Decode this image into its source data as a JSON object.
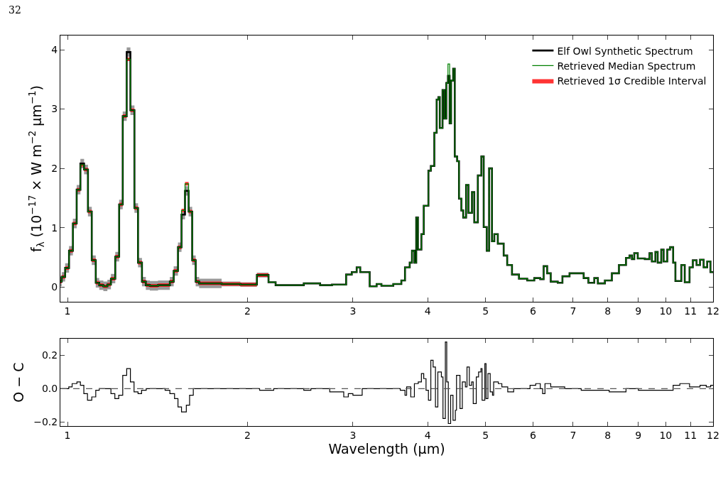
{
  "chart_data": [
    {
      "type": "step",
      "ylabel": "f$_{λ}$ (10$^{−17}$ × W m$^{−2}$ μm$^{−1}$)",
      "annotations": [
        "32"
      ],
      "log": "x",
      "legend": "top right",
      "tick_labels": "xy",
      "xlim": [
        0.973,
        12
      ],
      "xticks": [
        1,
        2,
        3,
        4,
        5,
        6,
        7,
        8,
        9,
        10,
        11,
        12
      ],
      "ylim": [
        -0.25,
        4.24
      ],
      "yticks": [
        0,
        1,
        2,
        3,
        4
      ],
      "x": [
        0.973,
        0.978,
        0.991,
        1.006,
        1.021,
        1.036,
        1.051,
        1.066,
        1.082,
        1.098,
        1.115,
        1.13,
        1.148,
        1.166,
        1.182,
        1.202,
        1.22,
        1.237,
        1.256,
        1.274,
        1.294,
        1.312,
        1.332,
        1.352,
        1.373,
        1.417,
        1.483,
        1.505,
        1.53,
        1.551,
        1.572,
        1.594,
        1.616,
        1.638,
        1.66,
        1.81,
        1.945,
        2.073,
        2.168,
        2.228,
        2.483,
        2.644,
        2.768,
        2.923,
        2.987,
        3.044,
        3.086,
        3.2,
        3.287,
        3.348,
        3.504,
        3.615,
        3.666,
        3.733,
        3.766,
        3.801,
        3.828,
        3.853,
        3.905,
        3.94,
        4.012,
        4.049,
        4.104,
        4.141,
        4.169,
        4.191,
        4.236,
        4.267,
        4.298,
        4.325,
        4.353,
        4.377,
        4.413,
        4.44,
        4.48,
        4.513,
        4.554,
        4.587,
        4.638,
        4.68,
        4.744,
        4.786,
        4.852,
        4.918,
        4.963,
        5.022,
        5.067,
        5.123,
        5.17,
        5.24,
        5.36,
        5.433,
        5.534,
        5.684,
        5.869,
        6.03,
        6.169,
        6.251,
        6.337,
        6.424,
        6.6,
        6.72,
        6.906,
        7.096,
        7.292,
        7.426,
        7.596,
        7.7,
        7.912,
        8.128,
        8.353,
        8.583,
        8.7,
        8.779,
        8.859,
        8.98,
        9.226,
        9.395,
        9.48,
        9.61,
        9.696,
        9.83,
        9.92,
        10.06,
        10.17,
        10.29,
        10.38,
        10.62,
        10.76,
        10.96,
        11.1,
        11.26,
        11.41,
        11.57,
        11.73,
        11.88,
        12.0
      ],
      "series": [
        {
          "type": "area",
          "color": "#999999",
          "values": [
            null,
            null,
            null,
            null,
            null,
            null,
            null,
            null,
            null,
            null,
            null,
            null,
            null,
            null,
            null,
            null,
            null,
            null,
            null,
            null,
            null,
            null,
            null,
            null,
            null,
            null,
            null,
            null,
            null,
            null,
            null,
            null,
            null,
            null,
            null,
            null,
            null,
            null,
            null
          ],
          "x": [
            0.973,
            0.978,
            0.991,
            1.006,
            1.021,
            1.036,
            1.051,
            1.066,
            1.082,
            1.098,
            1.115,
            1.13,
            1.148,
            1.166,
            1.182,
            1.202,
            1.22,
            1.237,
            1.256,
            1.274,
            1.294,
            1.312,
            1.332,
            1.352,
            1.373,
            1.417,
            1.483,
            1.505,
            1.53,
            1.551,
            1.572,
            1.594,
            1.616,
            1.638,
            1.66,
            1.81,
            1.945,
            2.073,
            2.168
          ],
          "lower": [
            0.01,
            0.09,
            0.24,
            0.53,
            0.99,
            1.56,
            2.0,
            1.9,
            1.19,
            0.37,
            -0.01,
            -0.05,
            -0.07,
            -0.04,
            0.06,
            0.43,
            1.31,
            2.8,
            3.88,
            2.9,
            1.25,
            0.33,
            0.01,
            -0.05,
            -0.06,
            -0.05,
            0.01,
            0.19,
            0.59,
            1.14,
            1.54,
            1.19,
            0.37,
            0.01,
            -0.02,
            0.01,
            0.0,
            0.16,
            0.04
          ],
          "upper": [
            0.17,
            0.25,
            0.4,
            0.69,
            1.15,
            1.72,
            2.16,
            2.06,
            1.35,
            0.53,
            0.15,
            0.11,
            0.09,
            0.12,
            0.22,
            0.59,
            1.47,
            2.96,
            4.04,
            3.06,
            1.41,
            0.49,
            0.17,
            0.11,
            0.1,
            0.11,
            0.17,
            0.35,
            0.75,
            1.3,
            1.7,
            1.35,
            0.53,
            0.17,
            0.14,
            0.09,
            0.08,
            0.24,
            0.12
          ]
        },
        {
          "type": "area",
          "name": "Retrieved 1σ Credible Interval",
          "color": "#ff3333",
          "values": [
            null,
            null,
            null,
            null,
            null,
            null,
            null,
            null,
            null,
            null,
            null,
            null,
            null,
            null,
            null,
            null,
            null,
            null,
            null,
            null,
            null,
            null,
            null,
            null,
            null,
            null,
            null,
            null,
            null,
            null,
            null,
            null,
            null,
            null,
            null,
            null,
            null,
            null,
            null
          ],
          "x": [
            0.973,
            0.978,
            0.991,
            1.006,
            1.021,
            1.036,
            1.051,
            1.066,
            1.082,
            1.098,
            1.115,
            1.13,
            1.148,
            1.166,
            1.182,
            1.202,
            1.22,
            1.237,
            1.256,
            1.274,
            1.294,
            1.312,
            1.332,
            1.352,
            1.373,
            1.417,
            1.483,
            1.505,
            1.53,
            1.551,
            1.572,
            1.594,
            1.616,
            1.638,
            1.66,
            1.81,
            1.945,
            2.073,
            2.168
          ],
          "lower": [
            0.06,
            0.14,
            0.29,
            0.58,
            1.04,
            1.61,
            2.03,
            1.95,
            1.24,
            0.42,
            0.04,
            0.0,
            -0.02,
            0.01,
            0.11,
            0.48,
            1.36,
            2.85,
            3.81,
            2.95,
            1.3,
            0.38,
            0.06,
            0.0,
            -0.01,
            0.0,
            0.06,
            0.24,
            0.64,
            1.26,
            1.71,
            1.24,
            0.42,
            0.06,
            0.03,
            0.02,
            0.01,
            0.17,
            0.05
          ],
          "upper": [
            0.12,
            0.2,
            0.35,
            0.64,
            1.1,
            1.67,
            2.09,
            2.01,
            1.3,
            0.48,
            0.1,
            0.06,
            0.04,
            0.07,
            0.17,
            0.54,
            1.42,
            2.91,
            3.87,
            3.01,
            1.36,
            0.44,
            0.12,
            0.06,
            0.05,
            0.06,
            0.12,
            0.3,
            0.7,
            1.32,
            1.77,
            1.3,
            0.48,
            0.12,
            0.09,
            0.08,
            0.07,
            0.23,
            0.11
          ]
        },
        {
          "name": "Elf Owl Synthetic Spectrum",
          "color": "#000000",
          "values": [
            0.09,
            0.17,
            0.32,
            0.61,
            1.07,
            1.64,
            2.08,
            1.98,
            1.27,
            0.45,
            0.07,
            0.03,
            0.01,
            0.04,
            0.14,
            0.51,
            1.39,
            2.88,
            3.96,
            2.98,
            1.33,
            0.41,
            0.09,
            0.03,
            0.02,
            0.03,
            0.09,
            0.27,
            0.67,
            1.22,
            1.62,
            1.27,
            0.45,
            0.09,
            0.06,
            0.05,
            0.04,
            0.2,
            0.08,
            0.03,
            0.06,
            0.03,
            0.04,
            0.21,
            0.25,
            0.33,
            0.25,
            0.01,
            0.05,
            0.02,
            0.05,
            0.11,
            0.33,
            0.41,
            0.61,
            0.41,
            1.17,
            0.63,
            0.89,
            1.37,
            1.96,
            2.04,
            2.6,
            3.16,
            3.2,
            2.68,
            3.32,
            2.84,
            3.44,
            3.56,
            2.76,
            3.48,
            3.68,
            2.2,
            2.12,
            1.49,
            1.29,
            1.17,
            1.72,
            1.25,
            1.6,
            1.09,
            1.88,
            2.2,
            1.01,
            0.61,
            2.0,
            0.77,
            0.89,
            0.73,
            0.53,
            0.37,
            0.21,
            0.14,
            0.11,
            0.15,
            0.13,
            0.35,
            0.23,
            0.09,
            0.07,
            0.18,
            0.23,
            0.23,
            0.15,
            0.07,
            0.15,
            0.06,
            0.11,
            0.23,
            0.37,
            0.49,
            0.53,
            0.47,
            0.57,
            0.48,
            0.47,
            0.57,
            0.43,
            0.59,
            0.41,
            0.63,
            0.43,
            0.63,
            0.67,
            0.41,
            0.1,
            0.37,
            0.08,
            0.33,
            0.45,
            0.37,
            0.46,
            0.33,
            0.43,
            0.25,
            0.25
          ]
        },
        {
          "name": "Retrieved Median Spectrum",
          "color": "#008000",
          "values": [
            0.09,
            0.17,
            0.32,
            0.61,
            1.07,
            1.64,
            2.06,
            1.98,
            1.27,
            0.45,
            0.07,
            0.03,
            0.01,
            0.04,
            0.14,
            0.51,
            1.39,
            2.88,
            3.84,
            2.98,
            1.33,
            0.41,
            0.09,
            0.03,
            0.02,
            0.03,
            0.09,
            0.27,
            0.67,
            1.29,
            1.74,
            1.27,
            0.45,
            0.09,
            0.06,
            0.05,
            0.04,
            0.2,
            0.08,
            0.03,
            0.06,
            0.03,
            0.04,
            0.21,
            0.25,
            0.33,
            0.25,
            0.01,
            0.05,
            0.02,
            0.05,
            0.11,
            0.33,
            0.41,
            0.61,
            0.41,
            1.17,
            0.63,
            0.89,
            1.37,
            1.96,
            2.04,
            2.6,
            3.16,
            3.2,
            2.68,
            3.32,
            2.84,
            3.44,
            3.76,
            2.76,
            3.48,
            3.68,
            2.2,
            2.12,
            1.49,
            1.29,
            1.17,
            1.72,
            1.25,
            1.6,
            1.09,
            1.88,
            2.2,
            1.01,
            0.61,
            2.0,
            0.77,
            0.89,
            0.73,
            0.53,
            0.37,
            0.21,
            0.14,
            0.11,
            0.15,
            0.13,
            0.35,
            0.23,
            0.09,
            0.07,
            0.18,
            0.23,
            0.23,
            0.15,
            0.07,
            0.15,
            0.06,
            0.11,
            0.23,
            0.37,
            0.49,
            0.53,
            0.47,
            0.57,
            0.48,
            0.47,
            0.57,
            0.43,
            0.59,
            0.41,
            0.63,
            0.43,
            0.63,
            0.67,
            0.41,
            0.1,
            0.37,
            0.08,
            0.33,
            0.45,
            0.37,
            0.46,
            0.33,
            0.43,
            0.25,
            0.25
          ]
        }
      ]
    },
    {
      "type": "step",
      "xlabel": "Wavelength (μm)",
      "ylabel": "O − C",
      "log": "x",
      "xlim": [
        0.973,
        12
      ],
      "xticks": [
        1,
        2,
        3,
        4,
        5,
        6,
        7,
        8,
        9,
        10,
        11,
        12
      ],
      "ylim": [
        -0.225,
        0.3
      ],
      "yticks": [
        {
          "value": -0.2,
          "label": "−0.2"
        },
        {
          "value": 0,
          "label": "0.0"
        },
        {
          "value": 0.2,
          "label": "0.2"
        }
      ],
      "ref_lines": [
        {
          "axis": "y",
          "value": 0,
          "color": "#555555",
          "line_style": "dashed"
        }
      ],
      "x": [
        0.973,
        1.005,
        1.018,
        1.037,
        1.051,
        1.065,
        1.08,
        1.098,
        1.115,
        1.13,
        1.182,
        1.2,
        1.218,
        1.237,
        1.256,
        1.274,
        1.292,
        1.312,
        1.33,
        1.354,
        1.404,
        1.456,
        1.483,
        1.51,
        1.53,
        1.551,
        1.58,
        1.6,
        1.623,
        1.744,
        1.912,
        2.095,
        2.212,
        2.483,
        2.552,
        2.744,
        2.896,
        2.947,
        3.0,
        3.109,
        3.6,
        3.666,
        3.689,
        3.748,
        3.801,
        3.858,
        3.905,
        3.94,
        3.975,
        4.012,
        4.049,
        4.085,
        4.122,
        4.16,
        4.217,
        4.243,
        4.282,
        4.305,
        4.331,
        4.37,
        4.41,
        4.45,
        4.47,
        4.53,
        4.571,
        4.625,
        4.654,
        4.696,
        4.738,
        4.767,
        4.823,
        4.866,
        4.91,
        4.932,
        4.985,
        5.008,
        5.044,
        5.089,
        5.134,
        5.157,
        5.25,
        5.322,
        5.444,
        5.57,
        5.932,
        6.063,
        6.171,
        6.226,
        6.283,
        6.424,
        6.779,
        7.223,
        7.568,
        8.045,
        8.583,
        9.0,
        9.74,
        10.29,
        10.56,
        10.96,
        11.41,
        11.69,
        11.89,
        12.0
      ],
      "series": [
        {
          "color": "#000000",
          "values": [
            0.0,
            0.01,
            0.03,
            0.04,
            0.02,
            -0.03,
            -0.07,
            -0.05,
            -0.01,
            0.0,
            -0.03,
            -0.06,
            -0.04,
            0.08,
            0.12,
            0.04,
            -0.02,
            -0.03,
            -0.01,
            0.0,
            0.0,
            -0.01,
            -0.03,
            -0.06,
            -0.11,
            -0.14,
            -0.1,
            -0.04,
            0.0,
            0.0,
            0.0,
            -0.01,
            0.0,
            -0.01,
            0.0,
            -0.02,
            -0.05,
            -0.03,
            -0.04,
            0.0,
            -0.01,
            -0.04,
            0.01,
            -0.05,
            0.03,
            0.04,
            0.09,
            0.06,
            -0.01,
            -0.07,
            0.17,
            0.13,
            -0.11,
            0.1,
            0.07,
            -0.18,
            0.28,
            0.04,
            -0.21,
            -0.04,
            -0.19,
            -0.13,
            0.08,
            -0.12,
            0.04,
            0.01,
            0.13,
            0.02,
            0.04,
            -0.09,
            0.07,
            0.1,
            0.12,
            -0.07,
            0.15,
            -0.06,
            0.09,
            -0.02,
            -0.04,
            0.04,
            0.03,
            0.01,
            -0.02,
            0.0,
            0.02,
            0.03,
            0.0,
            -0.03,
            0.03,
            0.01,
            0.0,
            -0.01,
            -0.01,
            -0.02,
            0.0,
            -0.01,
            -0.01,
            0.02,
            0.03,
            0.01,
            0.02,
            0.01,
            0.02,
            0.02
          ]
        }
      ]
    }
  ]
}
